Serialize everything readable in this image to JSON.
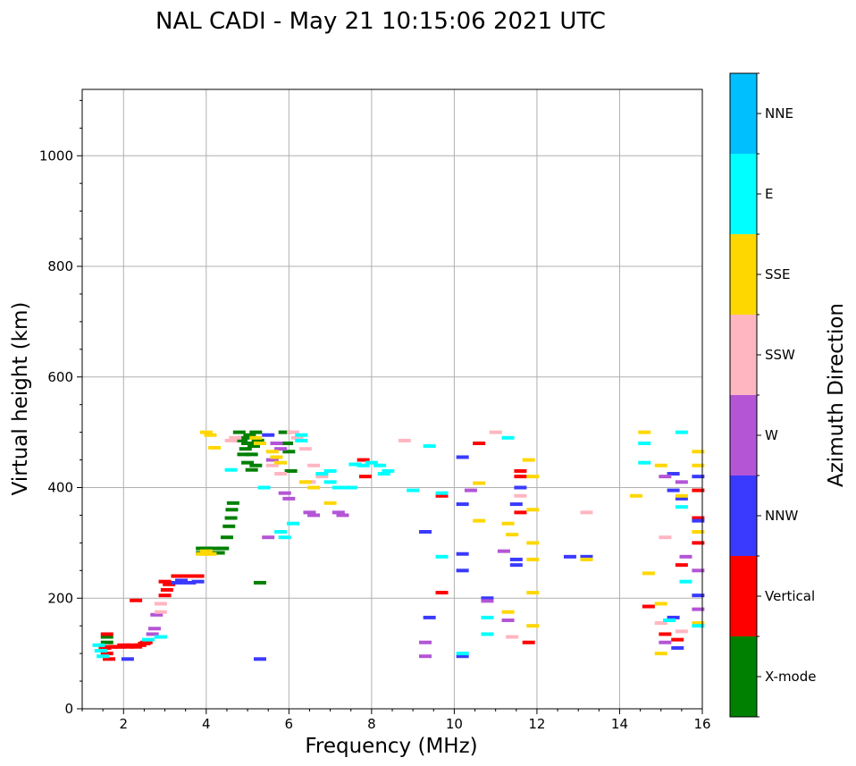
{
  "chart_data": {
    "type": "scatter",
    "title": "NAL CADI - May 21 10:15:06 2021 UTC",
    "xlabel": "Frequency (MHz)",
    "ylabel": "Virtual height (km)",
    "xlim": [
      1,
      16
    ],
    "ylim": [
      0,
      1120
    ],
    "xticks": [
      2,
      4,
      6,
      8,
      10,
      12,
      14,
      16
    ],
    "yticks": [
      0,
      200,
      400,
      600,
      800,
      1000
    ],
    "grid": true,
    "colorbar": {
      "label": "Azimuth Direction",
      "categories": [
        {
          "name": "X-mode",
          "color": "#008000"
        },
        {
          "name": "Vertical",
          "color": "#ff0000"
        },
        {
          "name": "NNW",
          "color": "#3a3aff"
        },
        {
          "name": "W",
          "color": "#b455d6"
        },
        {
          "name": "SSW",
          "color": "#ffb6c1"
        },
        {
          "name": "SSE",
          "color": "#ffd700"
        },
        {
          "name": "E",
          "color": "#00ffff"
        },
        {
          "name": "NNE",
          "color": "#00bfff"
        }
      ]
    },
    "series": [
      {
        "name": "X-mode",
        "points": [
          [
            1.6,
            130
          ],
          [
            1.6,
            120
          ],
          [
            3.9,
            290
          ],
          [
            3.9,
            282
          ],
          [
            4.0,
            290
          ],
          [
            4.1,
            282
          ],
          [
            4.2,
            290
          ],
          [
            4.3,
            282
          ],
          [
            4.4,
            290
          ],
          [
            4.5,
            310
          ],
          [
            4.55,
            330
          ],
          [
            4.6,
            345
          ],
          [
            4.62,
            360
          ],
          [
            4.65,
            372
          ],
          [
            4.8,
            500
          ],
          [
            4.85,
            485
          ],
          [
            4.9,
            490
          ],
          [
            4.95,
            470
          ],
          [
            5.0,
            480
          ],
          [
            5.05,
            495
          ],
          [
            5.1,
            460
          ],
          [
            5.15,
            475
          ],
          [
            5.2,
            500
          ],
          [
            5.25,
            485
          ],
          [
            4.9,
            460
          ],
          [
            5.0,
            445
          ],
          [
            5.1,
            432
          ],
          [
            5.2,
            440
          ],
          [
            5.3,
            228
          ],
          [
            5.9,
            500
          ],
          [
            5.95,
            480
          ],
          [
            6.0,
            465
          ],
          [
            6.05,
            430
          ]
        ]
      },
      {
        "name": "Vertical",
        "points": [
          [
            1.55,
            110
          ],
          [
            1.6,
            100
          ],
          [
            1.65,
            90
          ],
          [
            1.6,
            135
          ],
          [
            1.7,
            112
          ],
          [
            1.8,
            112
          ],
          [
            1.9,
            112
          ],
          [
            2.0,
            115
          ],
          [
            2.1,
            112
          ],
          [
            2.2,
            115
          ],
          [
            2.3,
            112
          ],
          [
            2.4,
            115
          ],
          [
            2.5,
            118
          ],
          [
            2.55,
            120
          ],
          [
            2.3,
            196
          ],
          [
            3.0,
            205
          ],
          [
            3.05,
            215
          ],
          [
            3.1,
            225
          ],
          [
            3.0,
            230
          ],
          [
            3.3,
            240
          ],
          [
            3.6,
            240
          ],
          [
            3.8,
            240
          ],
          [
            7.8,
            450
          ],
          [
            7.85,
            420
          ],
          [
            9.7,
            385
          ],
          [
            9.7,
            210
          ],
          [
            10.6,
            480
          ],
          [
            11.6,
            430
          ],
          [
            11.6,
            420
          ],
          [
            11.6,
            355
          ],
          [
            11.8,
            120
          ],
          [
            14.7,
            185
          ],
          [
            15.1,
            135
          ],
          [
            15.4,
            125
          ],
          [
            15.5,
            260
          ],
          [
            15.9,
            395
          ],
          [
            15.9,
            345
          ],
          [
            15.9,
            300
          ]
        ]
      },
      {
        "name": "NNW",
        "points": [
          [
            2.1,
            90
          ],
          [
            3.3,
            228
          ],
          [
            3.4,
            232
          ],
          [
            3.6,
            228
          ],
          [
            3.8,
            230
          ],
          [
            5.5,
            495
          ],
          [
            5.3,
            90
          ],
          [
            9.3,
            320
          ],
          [
            9.4,
            165
          ],
          [
            10.2,
            455
          ],
          [
            10.2,
            370
          ],
          [
            10.2,
            280
          ],
          [
            10.2,
            250
          ],
          [
            10.2,
            95
          ],
          [
            10.8,
            200
          ],
          [
            11.5,
            370
          ],
          [
            11.5,
            270
          ],
          [
            11.5,
            260
          ],
          [
            11.6,
            400
          ],
          [
            12.8,
            275
          ],
          [
            13.2,
            275
          ],
          [
            15.3,
            425
          ],
          [
            15.3,
            395
          ],
          [
            15.3,
            165
          ],
          [
            15.4,
            110
          ],
          [
            15.5,
            380
          ],
          [
            15.9,
            420
          ],
          [
            15.9,
            340
          ],
          [
            15.9,
            205
          ]
        ]
      },
      {
        "name": "W",
        "points": [
          [
            2.7,
            135
          ],
          [
            2.75,
            145
          ],
          [
            2.8,
            170
          ],
          [
            5.5,
            310
          ],
          [
            5.6,
            450
          ],
          [
            5.7,
            480
          ],
          [
            5.8,
            470
          ],
          [
            5.9,
            390
          ],
          [
            6.0,
            380
          ],
          [
            6.5,
            355
          ],
          [
            6.6,
            350
          ],
          [
            7.2,
            355
          ],
          [
            7.3,
            350
          ],
          [
            10.4,
            395
          ],
          [
            10.8,
            195
          ],
          [
            11.2,
            285
          ],
          [
            11.3,
            160
          ],
          [
            9.3,
            120
          ],
          [
            9.3,
            95
          ],
          [
            15.1,
            420
          ],
          [
            15.1,
            120
          ],
          [
            15.5,
            410
          ],
          [
            15.6,
            275
          ],
          [
            15.9,
            250
          ],
          [
            15.9,
            180
          ]
        ]
      },
      {
        "name": "SSW",
        "points": [
          [
            2.9,
            175
          ],
          [
            2.9,
            190
          ],
          [
            4.6,
            485
          ],
          [
            4.7,
            490
          ],
          [
            5.6,
            440
          ],
          [
            5.8,
            425
          ],
          [
            6.1,
            500
          ],
          [
            6.2,
            490
          ],
          [
            6.4,
            470
          ],
          [
            6.6,
            440
          ],
          [
            6.8,
            420
          ],
          [
            6.5,
            410
          ],
          [
            8.8,
            485
          ],
          [
            11.0,
            500
          ],
          [
            11.4,
            130
          ],
          [
            11.6,
            385
          ],
          [
            13.2,
            355
          ],
          [
            15.1,
            310
          ],
          [
            15.0,
            155
          ],
          [
            15.5,
            140
          ]
        ]
      },
      {
        "name": "SSE",
        "points": [
          [
            4.0,
            500
          ],
          [
            4.1,
            495
          ],
          [
            4.2,
            472
          ],
          [
            3.9,
            280
          ],
          [
            4.0,
            285
          ],
          [
            4.1,
            280
          ],
          [
            5.2,
            490
          ],
          [
            5.3,
            480
          ],
          [
            5.6,
            465
          ],
          [
            5.7,
            455
          ],
          [
            5.8,
            445
          ],
          [
            6.4,
            410
          ],
          [
            6.6,
            400
          ],
          [
            7.0,
            372
          ],
          [
            10.6,
            408
          ],
          [
            10.6,
            340
          ],
          [
            11.3,
            175
          ],
          [
            11.3,
            335
          ],
          [
            11.4,
            315
          ],
          [
            11.8,
            450
          ],
          [
            11.9,
            420
          ],
          [
            11.9,
            360
          ],
          [
            11.9,
            300
          ],
          [
            11.9,
            270
          ],
          [
            11.9,
            210
          ],
          [
            11.9,
            150
          ],
          [
            13.2,
            270
          ],
          [
            14.4,
            385
          ],
          [
            14.6,
            500
          ],
          [
            14.7,
            245
          ],
          [
            15.0,
            440
          ],
          [
            15.0,
            190
          ],
          [
            15.0,
            100
          ],
          [
            15.5,
            385
          ],
          [
            15.9,
            465
          ],
          [
            15.9,
            440
          ],
          [
            15.9,
            320
          ],
          [
            15.9,
            155
          ]
        ]
      },
      {
        "name": "E",
        "points": [
          [
            1.4,
            115
          ],
          [
            1.45,
            105
          ],
          [
            1.5,
            95
          ],
          [
            2.6,
            125
          ],
          [
            2.9,
            130
          ],
          [
            4.6,
            432
          ],
          [
            5.4,
            400
          ],
          [
            5.8,
            320
          ],
          [
            5.9,
            310
          ],
          [
            6.1,
            335
          ],
          [
            6.3,
            495
          ],
          [
            6.3,
            485
          ],
          [
            6.8,
            425
          ],
          [
            7.0,
            430
          ],
          [
            7.0,
            410
          ],
          [
            7.2,
            400
          ],
          [
            7.5,
            400
          ],
          [
            7.6,
            442
          ],
          [
            7.8,
            440
          ],
          [
            8.0,
            445
          ],
          [
            8.2,
            440
          ],
          [
            8.4,
            430
          ],
          [
            8.3,
            425
          ],
          [
            9.0,
            395
          ],
          [
            9.4,
            475
          ],
          [
            9.7,
            275
          ],
          [
            9.7,
            390
          ],
          [
            10.2,
            100
          ],
          [
            10.8,
            165
          ],
          [
            10.8,
            135
          ],
          [
            11.3,
            490
          ],
          [
            14.6,
            445
          ],
          [
            14.6,
            480
          ],
          [
            15.2,
            160
          ],
          [
            15.5,
            500
          ],
          [
            15.5,
            365
          ],
          [
            15.6,
            230
          ],
          [
            15.9,
            150
          ]
        ]
      }
    ]
  }
}
